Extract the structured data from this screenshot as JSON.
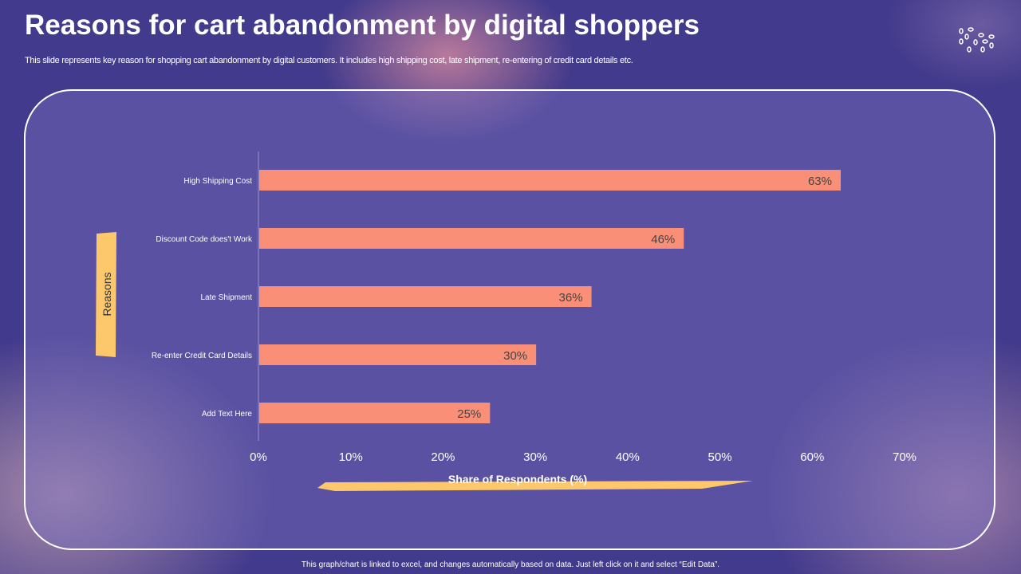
{
  "header": {
    "title": "Reasons for cart abandonment by digital shoppers",
    "subtitle": "This slide represents  key reason for shopping cart abandonment by digital customers. It includes high shipping cost, late shipment, re-entering of credit card details etc."
  },
  "footer": "This graph/chart is linked to excel, and changes automatically based on data. Just left click on it and select “Edit Data”.",
  "chart_data": {
    "type": "bar",
    "orientation": "horizontal",
    "categories": [
      "High Shipping Cost",
      "Discount Code does't Work",
      "Late Shipment",
      "Re-enter Credit Card Details",
      "Add Text Here"
    ],
    "values": [
      63,
      46,
      36,
      30,
      25
    ],
    "data_labels": [
      "63%",
      "46%",
      "36%",
      "30%",
      "25%"
    ],
    "xlabel": "Share of Respondents (%)",
    "ylabel": "Reasons",
    "xlim": [
      0,
      70
    ],
    "xticks": [
      "0%",
      "10%",
      "20%",
      "30%",
      "40%",
      "50%",
      "60%",
      "70%"
    ],
    "bar_color": "#fa8f78",
    "grid": false
  }
}
